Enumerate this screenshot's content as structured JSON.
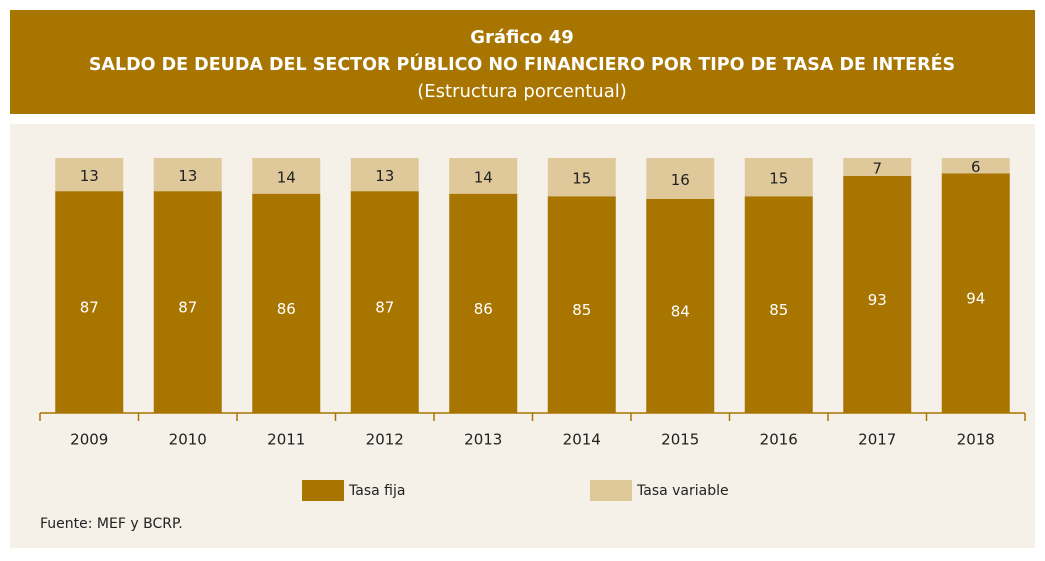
{
  "chart_data": {
    "type": "stacked_bar",
    "label": "Gráfico 49",
    "title": "SALDO DE DEUDA DEL SECTOR PÚBLICO NO FINANCIERO POR TIPO DE TASA DE INTERÉS",
    "subtitle": "(Estructura porcentual)",
    "categories": [
      "2009",
      "2010",
      "2011",
      "2012",
      "2013",
      "2014",
      "2015",
      "2016",
      "2017",
      "2018"
    ],
    "series": [
      {
        "name": "Tasa fija",
        "color": "#a87500",
        "values": [
          87,
          87,
          86,
          87,
          86,
          85,
          84,
          85,
          93,
          94
        ]
      },
      {
        "name": "Tasa variable",
        "color": "#dfc99b",
        "values": [
          13,
          13,
          14,
          13,
          14,
          15,
          16,
          15,
          7,
          6
        ]
      }
    ],
    "source": "Fuente: MEF y BCRP."
  }
}
